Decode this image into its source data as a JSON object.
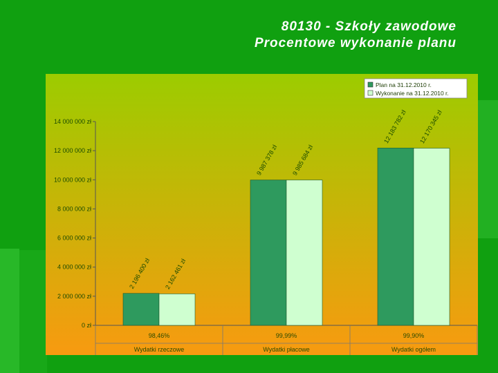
{
  "slide": {
    "title_line1": "80130 - Szkoły zawodowe",
    "title_line2": "Procentowe wykonanie planu"
  },
  "colors": {
    "background": "#10a010",
    "plot_top": "#9ccc00",
    "plot_bottom": "#f89a10",
    "plan": "#2e9a5e",
    "wykonanie": "#cfffd0"
  },
  "chart_data": {
    "type": "bar",
    "categories": [
      "Wydatki rzeczowe",
      "Wydatki płacowe",
      "Wydatki ogółem"
    ],
    "series": [
      {
        "name": "Plan na 31.12.2010 r.",
        "values": [
          2196400,
          9987378,
          12183782
        ],
        "labels": [
          "2 196 400 zł",
          "9 987 378 zł",
          "12 183 782 zł"
        ]
      },
      {
        "name": "Wykonanie na 31.12.2010 r.",
        "values": [
          2162461,
          9985684,
          12170345
        ],
        "labels": [
          "2 162 461 zł",
          "9 985 684 zł",
          "12 170 345 zł"
        ]
      }
    ],
    "percentages": [
      "98,46%",
      "99,99%",
      "99,90%"
    ],
    "yticks": [
      0,
      2000000,
      4000000,
      6000000,
      8000000,
      10000000,
      12000000,
      14000000
    ],
    "ytick_labels": [
      "0 zł",
      "2 000 000 zł",
      "4 000 000 zł",
      "6 000 000 zł",
      "8 000 000 zł",
      "10 000 000 zł",
      "12 000 000 zł",
      "14 000 000 zł"
    ],
    "ylim": [
      0,
      14000000
    ],
    "legend": "top-right",
    "grid": false,
    "xlabel": "",
    "ylabel": ""
  }
}
